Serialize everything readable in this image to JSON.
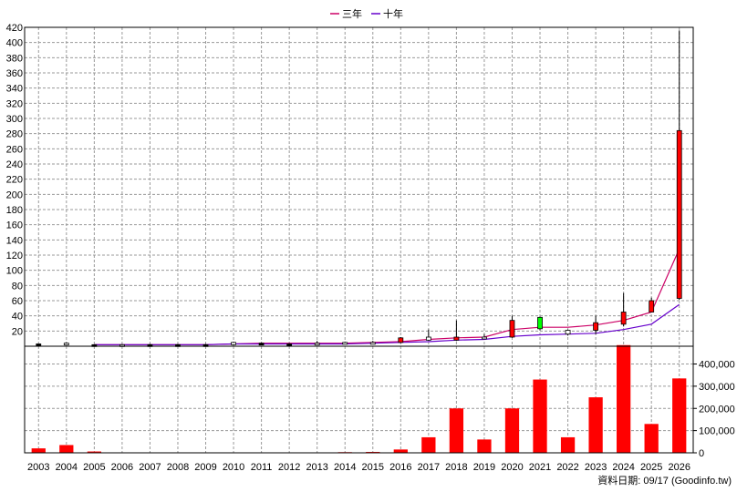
{
  "legend": [
    {
      "label": "三年",
      "color": "#cc0066"
    },
    {
      "label": "十年",
      "color": "#6600cc"
    }
  ],
  "footer": "資料日期: 09/17  (Goodinfo.tw)",
  "chart_data": [
    {
      "type": "candlestick-line",
      "categories": [
        "2003",
        "2004",
        "2005",
        "2006",
        "2007",
        "2008",
        "2009",
        "2010",
        "2011",
        "2012",
        "2013",
        "2014",
        "2015",
        "2016",
        "2017",
        "2018",
        "2019",
        "2020",
        "2021",
        "2022",
        "2023",
        "2024",
        "2025",
        "2026"
      ],
      "ylim": [
        0,
        420
      ],
      "yticks": [
        20,
        40,
        60,
        80,
        100,
        120,
        140,
        160,
        180,
        200,
        220,
        240,
        260,
        280,
        300,
        320,
        340,
        360,
        380,
        400,
        420
      ],
      "grid": true,
      "candles": [
        {
          "x": "2003",
          "open": 3,
          "close": 3,
          "high": 3,
          "low": 3,
          "color": "#000000"
        },
        {
          "x": "2004",
          "open": 2,
          "close": 4,
          "high": 5,
          "low": 1,
          "color": "#ffffff"
        },
        {
          "x": "2005",
          "open": 2,
          "close": 2,
          "high": 2,
          "low": 2,
          "color": "#000000"
        },
        {
          "x": "2006",
          "open": 1,
          "close": 2,
          "high": 3,
          "low": 1,
          "color": "#ffffff"
        },
        {
          "x": "2007",
          "open": 2,
          "close": 2,
          "high": 3,
          "low": 1,
          "color": "#000000"
        },
        {
          "x": "2008",
          "open": 2,
          "close": 2,
          "high": 3,
          "low": 1,
          "color": "#000000"
        },
        {
          "x": "2009",
          "open": 2,
          "close": 2,
          "high": 3,
          "low": 1,
          "color": "#000000"
        },
        {
          "x": "2010",
          "open": 2,
          "close": 5,
          "high": 6,
          "low": 1,
          "color": "#ffffff"
        },
        {
          "x": "2011",
          "open": 4,
          "close": 4,
          "high": 5,
          "low": 3,
          "color": "#000000"
        },
        {
          "x": "2012",
          "open": 3,
          "close": 3,
          "high": 4,
          "low": 2,
          "color": "#000000"
        },
        {
          "x": "2013",
          "open": 3,
          "close": 4,
          "high": 7,
          "low": 2,
          "color": "#ffffff"
        },
        {
          "x": "2014",
          "open": 4,
          "close": 5,
          "high": 6,
          "low": 3,
          "color": "#ffffff"
        },
        {
          "x": "2015",
          "open": 4,
          "close": 5,
          "high": 7,
          "low": 3,
          "color": "#ffffff"
        },
        {
          "x": "2016",
          "open": 5,
          "close": 11,
          "high": 12,
          "low": 4,
          "color": "#ff0000"
        },
        {
          "x": "2017",
          "open": 8,
          "close": 12,
          "high": 22,
          "low": 7,
          "color": "#ffffff"
        },
        {
          "x": "2018",
          "open": 8,
          "close": 12,
          "high": 34,
          "low": 7,
          "color": "#ff0000"
        },
        {
          "x": "2019",
          "open": 11,
          "close": 12,
          "high": 16,
          "low": 9,
          "color": "#ffffff"
        },
        {
          "x": "2020",
          "open": 12,
          "close": 34,
          "high": 40,
          "low": 11,
          "color": "#ff0000"
        },
        {
          "x": "2021",
          "open": 38,
          "close": 23,
          "high": 39,
          "low": 21,
          "color": "#00ff00"
        },
        {
          "x": "2022",
          "open": 16,
          "close": 21,
          "high": 22,
          "low": 14,
          "color": "#ffffff"
        },
        {
          "x": "2023",
          "open": 21,
          "close": 31,
          "high": 40,
          "low": 16,
          "color": "#ff0000"
        },
        {
          "x": "2024",
          "open": 29,
          "close": 45,
          "high": 70,
          "low": 26,
          "color": "#ff0000"
        },
        {
          "x": "2025",
          "open": 45,
          "close": 60,
          "high": 64,
          "low": 45,
          "color": "#ff0000"
        },
        {
          "x": "2026",
          "open": 63,
          "close": 284,
          "high": 416,
          "low": 61,
          "color": "#ff0000"
        }
      ],
      "series": [
        {
          "name": "三年",
          "color": "#cc0066",
          "values": [
            null,
            null,
            2,
            2,
            2,
            2,
            2,
            3,
            4,
            4,
            4,
            4,
            5,
            6,
            9,
            11,
            12,
            22,
            25,
            25,
            28,
            34,
            45,
            128
          ]
        },
        {
          "name": "十年",
          "color": "#6600cc",
          "values": [
            null,
            null,
            2,
            2,
            2,
            2,
            2,
            3,
            3,
            3,
            3,
            3,
            4,
            5,
            6,
            8,
            9,
            13,
            15,
            16,
            17,
            22,
            29,
            55
          ]
        }
      ]
    },
    {
      "type": "bar",
      "categories": [
        "2003",
        "2004",
        "2005",
        "2006",
        "2007",
        "2008",
        "2009",
        "2010",
        "2011",
        "2012",
        "2013",
        "2014",
        "2015",
        "2016",
        "2017",
        "2018",
        "2019",
        "2020",
        "2021",
        "2022",
        "2023",
        "2024",
        "2025",
        "2026"
      ],
      "values": [
        20000,
        35000,
        6000,
        2000,
        1000,
        1000,
        1000,
        1000,
        1000,
        1000,
        1000,
        3000,
        4000,
        15000,
        70000,
        200000,
        60000,
        200000,
        330000,
        70000,
        250000,
        485000,
        130000,
        335000
      ],
      "color": "#ff0000",
      "ylim": [
        0,
        480000
      ],
      "yticks": [
        "0",
        "100,000",
        "200,000",
        "300,000",
        "400,000"
      ],
      "ytick_values": [
        0,
        100000,
        200000,
        300000,
        400000
      ],
      "grid": true
    }
  ]
}
